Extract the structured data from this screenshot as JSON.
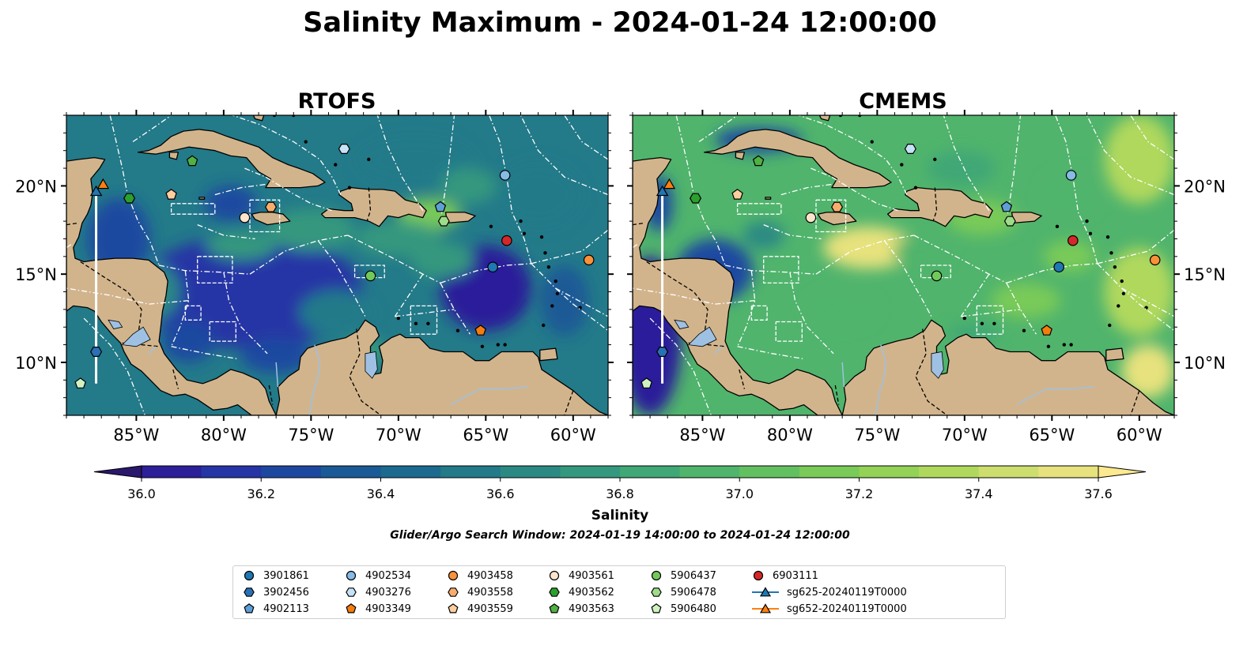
{
  "figure": {
    "suptitle": "Salinity Maximum - 2024-01-24 12:00:00",
    "search_window": "Glider/Argo Search Window: 2024-01-19 14:00:00 to 2024-01-24 12:00:00"
  },
  "colors": {
    "land": "#d2b48c",
    "rivers": "#9ec1e3",
    "eez_lines": "#ffffff",
    "colormap": [
      "#2a186c",
      "#2c1f9a",
      "#2635a5",
      "#1d48a0",
      "#1a5a96",
      "#1c6a8f",
      "#237a89",
      "#2b8984",
      "#34987e",
      "#40a776",
      "#50b46c",
      "#63c061",
      "#79ca59",
      "#93d256",
      "#b0d85d",
      "#cede6e",
      "#e7e27d",
      "#fde98f"
    ]
  },
  "chart_data": [
    {
      "type": "heatmap",
      "title": "RTOFS",
      "xticks": [
        "85°W",
        "80°W",
        "75°W",
        "70°W",
        "65°W",
        "60°W"
      ],
      "yticks": [
        "20°N",
        "15°N",
        "10°N"
      ],
      "xlim": [
        -89,
        -58
      ],
      "ylim": [
        7,
        24
      ]
    },
    {
      "type": "heatmap",
      "title": "CMEMS",
      "xticks": [
        "85°W",
        "80°W",
        "75°W",
        "70°W",
        "65°W",
        "60°W"
      ],
      "yticks": [
        "20°N",
        "15°N",
        "10°N"
      ],
      "xlim": [
        -89,
        -58
      ],
      "ylim": [
        7,
        24
      ]
    }
  ],
  "colorbar": {
    "label": "Salinity",
    "min": 35.9,
    "max": 37.7,
    "ticks": [
      "36.0",
      "36.2",
      "36.4",
      "36.6",
      "36.8",
      "37.0",
      "37.2",
      "37.4",
      "37.6"
    ],
    "tick_values": [
      36.0,
      36.2,
      36.4,
      36.6,
      36.8,
      37.0,
      37.2,
      37.4,
      37.6
    ]
  },
  "platforms": [
    {
      "id": "3901861",
      "marker": "circle",
      "color": "#1f77b4",
      "lon": -64.6,
      "lat": 15.4
    },
    {
      "id": "3902456",
      "marker": "hexagon",
      "color": "#2a70b5",
      "lon": -87.3,
      "lat": 10.6
    },
    {
      "id": "4902113",
      "marker": "pentagon",
      "color": "#5e9fd6",
      "lon": -67.6,
      "lat": 18.8
    },
    {
      "id": "4902534",
      "marker": "circle",
      "color": "#85bbe6",
      "lon": -63.9,
      "lat": 20.6
    },
    {
      "id": "4903276",
      "marker": "hexagon",
      "color": "#c6e2f6",
      "lon": -73.1,
      "lat": 22.1
    },
    {
      "id": "4903349",
      "marker": "pentagon",
      "color": "#f57c0f",
      "lon": -65.3,
      "lat": 11.8
    },
    {
      "id": "4903458",
      "marker": "circle",
      "color": "#f9913a",
      "lon": -59.1,
      "lat": 15.8
    },
    {
      "id": "4903558",
      "marker": "hexagon",
      "color": "#f9ad6c",
      "lon": -77.3,
      "lat": 18.8
    },
    {
      "id": "4903559",
      "marker": "pentagon",
      "color": "#fdcf9f",
      "lon": -83.0,
      "lat": 19.5
    },
    {
      "id": "4903561",
      "marker": "circle",
      "color": "#fde5cc",
      "lon": -78.8,
      "lat": 18.2
    },
    {
      "id": "4903562",
      "marker": "hexagon",
      "color": "#2ca02c",
      "lon": -85.4,
      "lat": 19.3
    },
    {
      "id": "4903563",
      "marker": "pentagon",
      "color": "#4fb243",
      "lon": -81.8,
      "lat": 21.4
    },
    {
      "id": "5906437",
      "marker": "circle",
      "color": "#72c95a",
      "lon": -71.6,
      "lat": 14.9
    },
    {
      "id": "5906478",
      "marker": "hexagon",
      "color": "#9edc8b",
      "lon": -67.4,
      "lat": 18.0
    },
    {
      "id": "5906480",
      "marker": "pentagon",
      "color": "#cff2c2",
      "lon": -88.2,
      "lat": 8.8
    },
    {
      "id": "6903111",
      "marker": "circle",
      "color": "#d62728",
      "lon": -63.8,
      "lat": 16.9
    }
  ],
  "gliders": [
    {
      "id": "sg625-20240119T0000",
      "marker": "triangle",
      "color": "#1f77b4",
      "lon": -87.3,
      "lat": 19.7
    },
    {
      "id": "sg652-20240119T0000",
      "marker": "triangle",
      "color": "#ff7f0e",
      "lon": -86.9,
      "lat": 20.1
    }
  ]
}
